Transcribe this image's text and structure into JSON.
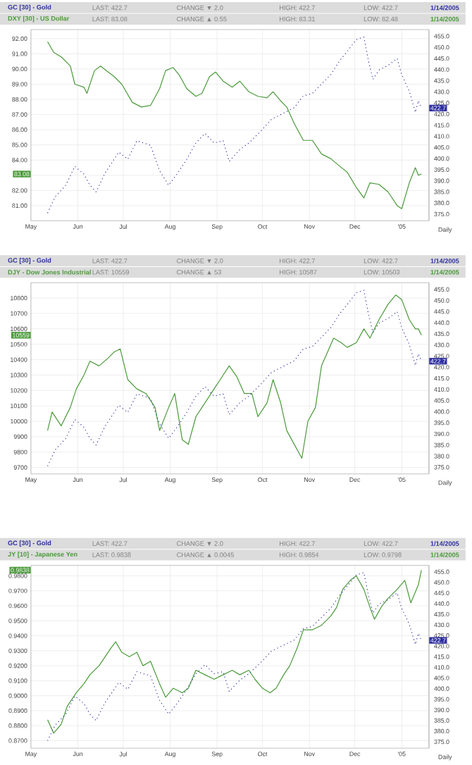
{
  "chart_data": [
    {
      "type": "line",
      "title": "GC [30] - Gold",
      "subtitle": "DXY [30] - US Dollar",
      "xlabel": "Daily",
      "grid": true,
      "annotations": [
        "LAST: 422.7",
        "CHANGE ▼ 2.0",
        "HIGH: 422.7",
        "LOW: 422.7",
        "1/14/2005",
        "LAST: 83.08",
        "CHANGE ▲ 0.55",
        "HIGH: 83.31",
        "LOW: 82.48",
        "1/14/2005",
        "83.08",
        "422.7"
      ],
      "xlim": [
        "2004-05-01",
        "2005-01-19"
      ],
      "xticks": [
        {
          "value": "2004-05-01",
          "label": "May"
        },
        {
          "value": "2004-06-01",
          "label": "Jun"
        },
        {
          "value": "2004-07-01",
          "label": "Jul"
        },
        {
          "value": "2004-08-01",
          "label": "Aug"
        },
        {
          "value": "2004-09-01",
          "label": "Sep"
        },
        {
          "value": "2004-10-01",
          "label": "Oct"
        },
        {
          "value": "2004-11-01",
          "label": "Nov"
        },
        {
          "value": "2004-12-01",
          "label": "Dec"
        },
        {
          "value": "2005-01-01",
          "label": "'05"
        }
      ],
      "ylim": [
        80,
        92.6
      ],
      "yticks": [
        {
          "value": 81,
          "label": "81.00"
        },
        {
          "value": 82,
          "label": "82.00"
        },
        {
          "value": 83,
          "label": null
        },
        {
          "value": 84,
          "label": "84.00"
        },
        {
          "value": 85,
          "label": "85.00"
        },
        {
          "value": 86,
          "label": "86.00"
        },
        {
          "value": 87,
          "label": "87.00"
        },
        {
          "value": 88,
          "label": "88.00"
        },
        {
          "value": 89,
          "label": "89.00"
        },
        {
          "value": 90,
          "label": "90.00"
        },
        {
          "value": 91,
          "label": "91.00"
        },
        {
          "value": 92,
          "label": "92.00"
        }
      ],
      "y2lim": [
        372,
        458
      ],
      "y2ticks": [
        {
          "value": 375,
          "label": "375.0"
        },
        {
          "value": 380,
          "label": "380.0"
        },
        {
          "value": 385,
          "label": "385.0"
        },
        {
          "value": 390,
          "label": "390.0"
        },
        {
          "value": 395,
          "label": "395.0"
        },
        {
          "value": 400,
          "label": "400.0"
        },
        {
          "value": 405,
          "label": "405.0"
        },
        {
          "value": 410,
          "label": "410.0"
        },
        {
          "value": 415,
          "label": "415.0"
        },
        {
          "value": 420,
          "label": "420.0"
        },
        {
          "value": 425,
          "label": "425.0"
        },
        {
          "value": 430,
          "label": "430.0"
        },
        {
          "value": 435,
          "label": "435.0"
        },
        {
          "value": 440,
          "label": "440.0"
        },
        {
          "value": 445,
          "label": "445.0"
        },
        {
          "value": 450,
          "label": "450.0"
        },
        {
          "value": 455,
          "label": "455.0"
        }
      ],
      "series": [
        {
          "color": "#4a9a3a",
          "line_style": "solid",
          "x": [
            "2004-05-12",
            "2004-05-16",
            "2004-05-21",
            "2004-05-27",
            "2004-05-30",
            "2004-06-05",
            "2004-06-07",
            "2004-06-12",
            "2004-06-16",
            "2004-06-21",
            "2004-06-25",
            "2004-06-30",
            "2004-07-07",
            "2004-07-13",
            "2004-07-19",
            "2004-07-25",
            "2004-07-29",
            "2004-08-03",
            "2004-08-07",
            "2004-08-12",
            "2004-08-18",
            "2004-08-22",
            "2004-08-27",
            "2004-08-31",
            "2004-09-05",
            "2004-09-11",
            "2004-09-16",
            "2004-09-22",
            "2004-09-28",
            "2004-10-04",
            "2004-10-08",
            "2004-10-13",
            "2004-10-17",
            "2004-10-22",
            "2004-10-28",
            "2004-11-03",
            "2004-11-09",
            "2004-11-15",
            "2004-11-21",
            "2004-11-26",
            "2004-12-02",
            "2004-12-07",
            "2004-12-11",
            "2004-12-17",
            "2004-12-23",
            "2004-12-29",
            "2005-01-01",
            "2005-01-06",
            "2005-01-10",
            "2005-01-12",
            "2005-01-14"
          ],
          "values": [
            91.8,
            91.1,
            90.8,
            90.2,
            89.0,
            88.8,
            88.4,
            89.9,
            90.2,
            89.8,
            89.5,
            89.0,
            87.8,
            87.5,
            87.6,
            88.7,
            89.9,
            90.1,
            89.6,
            88.7,
            88.2,
            88.4,
            89.5,
            89.8,
            89.2,
            88.8,
            89.2,
            88.5,
            88.2,
            88.1,
            88.5,
            87.9,
            87.5,
            86.4,
            85.3,
            85.3,
            84.4,
            84.1,
            83.6,
            83.2,
            82.2,
            81.5,
            82.5,
            82.4,
            81.9,
            81.0,
            80.8,
            82.5,
            83.5,
            83.0,
            83.08
          ]
        },
        {
          "color": "#3030a0",
          "axis": "y2",
          "line_style": "dotted",
          "x": [
            "2004-05-12",
            "2004-05-17",
            "2004-05-24",
            "2004-05-30",
            "2004-06-05",
            "2004-06-09",
            "2004-06-13",
            "2004-06-19",
            "2004-06-23",
            "2004-06-28",
            "2004-07-04",
            "2004-07-10",
            "2004-07-19",
            "2004-07-25",
            "2004-07-31",
            "2004-08-06",
            "2004-08-12",
            "2004-08-18",
            "2004-08-24",
            "2004-08-30",
            "2004-09-05",
            "2004-09-09",
            "2004-09-16",
            "2004-09-22",
            "2004-09-30",
            "2004-10-07",
            "2004-10-16",
            "2004-10-22",
            "2004-10-28",
            "2004-11-03",
            "2004-11-09",
            "2004-11-15",
            "2004-11-21",
            "2004-11-26",
            "2004-12-02",
            "2004-12-07",
            "2004-12-10",
            "2004-12-13",
            "2004-12-17",
            "2004-12-23",
            "2004-12-29",
            "2005-01-01",
            "2005-01-06",
            "2005-01-10",
            "2005-01-12",
            "2005-01-14"
          ],
          "values": [
            375.5,
            382.8,
            388.0,
            396.5,
            393.0,
            388.0,
            385.0,
            393.5,
            397.6,
            402.9,
            399.7,
            408.0,
            406.0,
            394.5,
            388.0,
            393.5,
            399.7,
            407.0,
            411.3,
            407.0,
            408.0,
            398.7,
            404.0,
            407.0,
            412.4,
            417.7,
            420.8,
            422.9,
            428.2,
            429.3,
            433.5,
            437.7,
            444.0,
            448.2,
            453.5,
            454.6,
            444.0,
            435.6,
            439.8,
            441.9,
            445.0,
            437.7,
            430.3,
            420.8,
            426.0,
            422.7
          ]
        }
      ]
    },
    {
      "type": "line",
      "title": "GC [30] - Gold",
      "subtitle": "DJY - Dow Jones Industrial",
      "xlabel": "Daily",
      "grid": true,
      "annotations": [
        "LAST: 422.7",
        "CHANGE ▼ 2.0",
        "HIGH: 422.7",
        "LOW: 422.7",
        "1/14/2005",
        "LAST: 10559",
        "CHANGE ▲ 53",
        "HIGH: 10587",
        "LOW: 10503",
        "1/14/2005",
        "10559",
        "422.7"
      ],
      "xlim": [
        "2004-05-01",
        "2005-01-19"
      ],
      "xticks": [
        {
          "value": "2004-05-01",
          "label": "May"
        },
        {
          "value": "2004-06-01",
          "label": "Jun"
        },
        {
          "value": "2004-07-01",
          "label": "Jul"
        },
        {
          "value": "2004-08-01",
          "label": "Aug"
        },
        {
          "value": "2004-09-01",
          "label": "Sep"
        },
        {
          "value": "2004-10-01",
          "label": "Oct"
        },
        {
          "value": "2004-11-01",
          "label": "Nov"
        },
        {
          "value": "2004-12-01",
          "label": "Dec"
        },
        {
          "value": "2005-01-01",
          "label": "'05"
        }
      ],
      "ylim": [
        9658,
        10900
      ],
      "yticks": [
        9700,
        9800,
        9900,
        10000,
        10100,
        10200,
        10300,
        10400,
        10500,
        10600,
        10700,
        10800
      ],
      "y2lim": [
        372,
        458
      ],
      "y2ticks": [
        {
          "value": 375,
          "label": "375.0"
        },
        {
          "value": 380,
          "label": "380.0"
        },
        {
          "value": 385,
          "label": "385.0"
        },
        {
          "value": 390,
          "label": "390.0"
        },
        {
          "value": 395,
          "label": "395.0"
        },
        {
          "value": 400,
          "label": "400.0"
        },
        {
          "value": 405,
          "label": "405.0"
        },
        {
          "value": 410,
          "label": "410.0"
        },
        {
          "value": 415,
          "label": "415.0"
        },
        {
          "value": 420,
          "label": "420.0"
        },
        {
          "value": 425,
          "label": "425.0"
        },
        {
          "value": 430,
          "label": "430.0"
        },
        {
          "value": 435,
          "label": "435.0"
        },
        {
          "value": 440,
          "label": "440.0"
        },
        {
          "value": 445,
          "label": "445.0"
        },
        {
          "value": 450,
          "label": "450.0"
        },
        {
          "value": 455,
          "label": "455.0"
        }
      ],
      "series": [
        {
          "color": "#4a9a3a",
          "line_style": "solid",
          "x": [
            "2004-05-12",
            "2004-05-15",
            "2004-05-21",
            "2004-05-27",
            "2004-05-31",
            "2004-06-05",
            "2004-06-09",
            "2004-06-15",
            "2004-06-21",
            "2004-06-25",
            "2004-06-29",
            "2004-07-04",
            "2004-07-10",
            "2004-07-16",
            "2004-07-22",
            "2004-07-25",
            "2004-07-31",
            "2004-08-04",
            "2004-08-09",
            "2004-08-13",
            "2004-08-18",
            "2004-08-24",
            "2004-08-30",
            "2004-09-05",
            "2004-09-09",
            "2004-09-14",
            "2004-09-19",
            "2004-09-24",
            "2004-09-28",
            "2004-10-04",
            "2004-10-08",
            "2004-10-13",
            "2004-10-17",
            "2004-10-22",
            "2004-10-27",
            "2004-10-31",
            "2004-11-05",
            "2004-11-09",
            "2004-11-13",
            "2004-11-17",
            "2004-11-22",
            "2004-11-26",
            "2004-12-02",
            "2004-12-07",
            "2004-12-11",
            "2004-12-17",
            "2004-12-23",
            "2004-12-28",
            "2005-01-01",
            "2005-01-06",
            "2005-01-10",
            "2005-01-12",
            "2005-01-14"
          ],
          "values": [
            9940,
            10060,
            9970,
            10090,
            10210,
            10300,
            10390,
            10360,
            10410,
            10450,
            10470,
            10270,
            10210,
            10180,
            10090,
            9940,
            10090,
            10180,
            9880,
            9850,
            10030,
            10120,
            10210,
            10300,
            10360,
            10290,
            10180,
            10180,
            10030,
            10120,
            10270,
            10120,
            9940,
            9850,
            9760,
            10000,
            10090,
            10360,
            10450,
            10540,
            10510,
            10480,
            10510,
            10600,
            10540,
            10660,
            10760,
            10820,
            10790,
            10660,
            10600,
            10600,
            10559
          ]
        },
        {
          "color": "#3030a0",
          "axis": "y2",
          "line_style": "dotted",
          "x": [
            "2004-05-12",
            "2004-05-17",
            "2004-05-24",
            "2004-05-30",
            "2004-06-05",
            "2004-06-09",
            "2004-06-13",
            "2004-06-19",
            "2004-06-23",
            "2004-06-28",
            "2004-07-04",
            "2004-07-10",
            "2004-07-19",
            "2004-07-25",
            "2004-07-31",
            "2004-08-06",
            "2004-08-12",
            "2004-08-18",
            "2004-08-24",
            "2004-08-30",
            "2004-09-05",
            "2004-09-09",
            "2004-09-16",
            "2004-09-22",
            "2004-09-30",
            "2004-10-07",
            "2004-10-16",
            "2004-10-22",
            "2004-10-28",
            "2004-11-03",
            "2004-11-09",
            "2004-11-15",
            "2004-11-21",
            "2004-11-26",
            "2004-12-02",
            "2004-12-07",
            "2004-12-10",
            "2004-12-13",
            "2004-12-17",
            "2004-12-23",
            "2004-12-29",
            "2005-01-01",
            "2005-01-06",
            "2005-01-10",
            "2005-01-12",
            "2005-01-14"
          ],
          "values": [
            375.5,
            382.8,
            388.0,
            396.5,
            393.0,
            388.0,
            385.0,
            393.5,
            397.6,
            402.9,
            399.7,
            408.0,
            406.0,
            394.5,
            388.0,
            393.5,
            399.7,
            407.0,
            411.3,
            407.0,
            408.0,
            398.7,
            404.0,
            407.0,
            412.4,
            417.7,
            420.8,
            422.9,
            428.2,
            429.3,
            433.5,
            437.7,
            444.0,
            448.2,
            453.5,
            454.6,
            444.0,
            435.6,
            439.8,
            441.9,
            445.0,
            437.7,
            430.3,
            420.8,
            426.0,
            422.7
          ]
        }
      ]
    },
    {
      "type": "line",
      "title": "GC [30] - Gold",
      "subtitle": "JY [10] - Japanese Yen",
      "xlabel": "Daily",
      "grid": true,
      "annotations": [
        "LAST: 422.7",
        "CHANGE ▼ 2.0",
        "HIGH: 422.7",
        "LOW: 422.7",
        "1/14/2005",
        "LAST: 0.9838",
        "CHANGE ▲ 0.0045",
        "HIGH: 0.9854",
        "LOW: 0.9798",
        "1/14/2005",
        "0.9838",
        "422.7"
      ],
      "xlim": [
        "2004-05-01",
        "2005-01-19"
      ],
      "xticks": [
        {
          "value": "2004-05-01",
          "label": "May"
        },
        {
          "value": "2004-06-01",
          "label": "Jun"
        },
        {
          "value": "2004-07-01",
          "label": "Jul"
        },
        {
          "value": "2004-08-01",
          "label": "Aug"
        },
        {
          "value": "2004-09-01",
          "label": "Sep"
        },
        {
          "value": "2004-10-01",
          "label": "Oct"
        },
        {
          "value": "2004-11-01",
          "label": "Nov"
        },
        {
          "value": "2004-12-01",
          "label": "Dec"
        },
        {
          "value": "2005-01-01",
          "label": "'05"
        }
      ],
      "ylim": [
        0.865,
        0.987
      ],
      "yticks": [
        {
          "value": 0.87,
          "label": "0.8700"
        },
        {
          "value": 0.88,
          "label": "0.8800"
        },
        {
          "value": 0.89,
          "label": "0.8900"
        },
        {
          "value": 0.9,
          "label": "0.9000"
        },
        {
          "value": 0.91,
          "label": "0.9100"
        },
        {
          "value": 0.92,
          "label": "0.9200"
        },
        {
          "value": 0.93,
          "label": "0.9300"
        },
        {
          "value": 0.94,
          "label": "0.9400"
        },
        {
          "value": 0.95,
          "label": "0.9500"
        },
        {
          "value": 0.96,
          "label": "0.9600"
        },
        {
          "value": 0.97,
          "label": "0.9700"
        },
        {
          "value": 0.98,
          "label": "0.9800"
        }
      ],
      "y2lim": [
        372,
        458
      ],
      "y2ticks": [
        {
          "value": 375,
          "label": "375.0"
        },
        {
          "value": 380,
          "label": "380.0"
        },
        {
          "value": 385,
          "label": "385.0"
        },
        {
          "value": 390,
          "label": "390.0"
        },
        {
          "value": 395,
          "label": "395.0"
        },
        {
          "value": 400,
          "label": "400.0"
        },
        {
          "value": 405,
          "label": "405.0"
        },
        {
          "value": 410,
          "label": "410.0"
        },
        {
          "value": 415,
          "label": "415.0"
        },
        {
          "value": 420,
          "label": "420.0"
        },
        {
          "value": 425,
          "label": "425.0"
        },
        {
          "value": 430,
          "label": "430.0"
        },
        {
          "value": 435,
          "label": "435.0"
        },
        {
          "value": 440,
          "label": "440.0"
        },
        {
          "value": 445,
          "label": "445.0"
        },
        {
          "value": 450,
          "label": "450.0"
        },
        {
          "value": 455,
          "label": "455.0"
        }
      ],
      "series": [
        {
          "color": "#4a9a3a",
          "line_style": "solid",
          "x": [
            "2004-05-12",
            "2004-05-16",
            "2004-05-21",
            "2004-05-25",
            "2004-05-31",
            "2004-06-05",
            "2004-06-09",
            "2004-06-15",
            "2004-06-19",
            "2004-06-23",
            "2004-06-26",
            "2004-06-30",
            "2004-07-05",
            "2004-07-10",
            "2004-07-14",
            "2004-07-19",
            "2004-07-25",
            "2004-07-29",
            "2004-08-03",
            "2004-08-09",
            "2004-08-13",
            "2004-08-18",
            "2004-08-24",
            "2004-08-30",
            "2004-09-05",
            "2004-09-11",
            "2004-09-16",
            "2004-09-22",
            "2004-09-26",
            "2004-10-01",
            "2004-10-06",
            "2004-10-10",
            "2004-10-15",
            "2004-10-19",
            "2004-10-24",
            "2004-10-28",
            "2004-11-03",
            "2004-11-09",
            "2004-11-15",
            "2004-11-19",
            "2004-11-23",
            "2004-11-28",
            "2004-12-02",
            "2004-12-07",
            "2004-12-11",
            "2004-12-14",
            "2004-12-19",
            "2004-12-23",
            "2004-12-29",
            "2005-01-03",
            "2005-01-07",
            "2005-01-12",
            "2005-01-14"
          ],
          "values": [
            0.884,
            0.875,
            0.881,
            0.893,
            0.902,
            0.908,
            0.914,
            0.92,
            0.926,
            0.932,
            0.936,
            0.929,
            0.926,
            0.929,
            0.92,
            0.923,
            0.908,
            0.899,
            0.905,
            0.902,
            0.905,
            0.917,
            0.914,
            0.911,
            0.914,
            0.917,
            0.914,
            0.917,
            0.911,
            0.905,
            0.902,
            0.905,
            0.914,
            0.92,
            0.932,
            0.944,
            0.944,
            0.947,
            0.953,
            0.959,
            0.971,
            0.977,
            0.98,
            0.971,
            0.959,
            0.951,
            0.96,
            0.965,
            0.971,
            0.977,
            0.962,
            0.974,
            0.9838
          ]
        },
        {
          "color": "#3030a0",
          "axis": "y2",
          "line_style": "dotted",
          "x": [
            "2004-05-12",
            "2004-05-17",
            "2004-05-24",
            "2004-05-30",
            "2004-06-05",
            "2004-06-09",
            "2004-06-13",
            "2004-06-19",
            "2004-06-23",
            "2004-06-28",
            "2004-07-04",
            "2004-07-10",
            "2004-07-19",
            "2004-07-25",
            "2004-07-31",
            "2004-08-06",
            "2004-08-12",
            "2004-08-18",
            "2004-08-24",
            "2004-08-30",
            "2004-09-05",
            "2004-09-09",
            "2004-09-16",
            "2004-09-22",
            "2004-09-30",
            "2004-10-07",
            "2004-10-16",
            "2004-10-22",
            "2004-10-28",
            "2004-11-03",
            "2004-11-09",
            "2004-11-15",
            "2004-11-21",
            "2004-11-26",
            "2004-12-02",
            "2004-12-07",
            "2004-12-10",
            "2004-12-13",
            "2004-12-17",
            "2004-12-23",
            "2004-12-29",
            "2005-01-01",
            "2005-01-06",
            "2005-01-10",
            "2005-01-12",
            "2005-01-14"
          ],
          "values": [
            375.5,
            382.8,
            388.0,
            396.5,
            393.0,
            388.0,
            385.0,
            393.5,
            397.6,
            402.9,
            399.7,
            408.0,
            406.0,
            394.5,
            388.0,
            393.5,
            399.7,
            407.0,
            411.3,
            407.0,
            408.0,
            398.7,
            404.0,
            407.0,
            412.4,
            417.7,
            420.8,
            422.9,
            428.2,
            429.3,
            433.5,
            437.7,
            444.0,
            448.2,
            453.5,
            454.6,
            444.0,
            435.6,
            439.8,
            441.9,
            445.0,
            437.7,
            430.3,
            420.8,
            426.0,
            422.7
          ]
        }
      ]
    }
  ]
}
